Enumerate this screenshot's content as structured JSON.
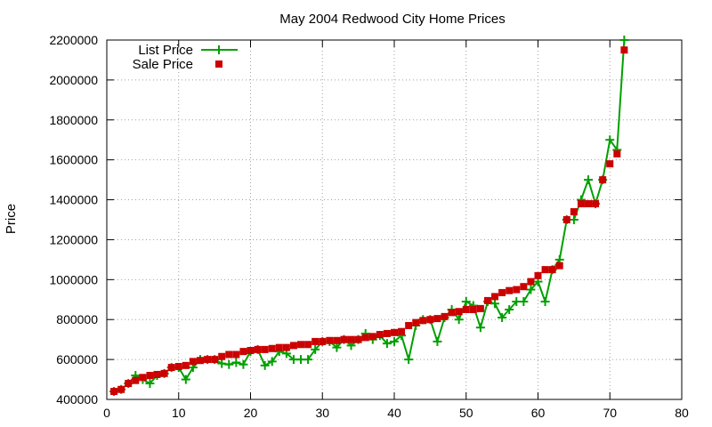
{
  "chart_data": {
    "type": "line",
    "title": "May 2004 Redwood City Home Prices",
    "xlabel": "",
    "ylabel": "Price",
    "xlim": [
      0,
      80
    ],
    "ylim": [
      400000,
      2200000
    ],
    "x_ticks": [
      0,
      10,
      20,
      30,
      40,
      50,
      60,
      70,
      80
    ],
    "y_ticks": [
      400000,
      600000,
      800000,
      1000000,
      1200000,
      1400000,
      1600000,
      1800000,
      2000000,
      2200000
    ],
    "grid": true,
    "legend_position": "top-left",
    "series": [
      {
        "name": "List Price",
        "style": "line-plus",
        "color": "#00a000",
        "points": [
          [
            1,
            440000
          ],
          [
            2,
            450000
          ],
          [
            3,
            480000
          ],
          [
            4,
            520000
          ],
          [
            5,
            500000
          ],
          [
            6,
            480000
          ],
          [
            7,
            520000
          ],
          [
            8,
            530000
          ],
          [
            9,
            560000
          ],
          [
            10,
            560000
          ],
          [
            11,
            500000
          ],
          [
            12,
            560000
          ],
          [
            13,
            600000
          ],
          [
            14,
            600000
          ],
          [
            15,
            600000
          ],
          [
            16,
            580000
          ],
          [
            17,
            575000
          ],
          [
            18,
            585000
          ],
          [
            19,
            575000
          ],
          [
            20,
            640000
          ],
          [
            21,
            650000
          ],
          [
            22,
            570000
          ],
          [
            23,
            590000
          ],
          [
            24,
            640000
          ],
          [
            25,
            630000
          ],
          [
            26,
            600000
          ],
          [
            27,
            600000
          ],
          [
            28,
            600000
          ],
          [
            29,
            650000
          ],
          [
            30,
            690000
          ],
          [
            31,
            690000
          ],
          [
            32,
            660000
          ],
          [
            33,
            700000
          ],
          [
            34,
            670000
          ],
          [
            35,
            700000
          ],
          [
            36,
            730000
          ],
          [
            37,
            700000
          ],
          [
            38,
            720000
          ],
          [
            39,
            680000
          ],
          [
            40,
            690000
          ],
          [
            41,
            720000
          ],
          [
            42,
            600000
          ],
          [
            43,
            770000
          ],
          [
            44,
            800000
          ],
          [
            45,
            800000
          ],
          [
            46,
            690000
          ],
          [
            47,
            810000
          ],
          [
            48,
            850000
          ],
          [
            49,
            800000
          ],
          [
            50,
            890000
          ],
          [
            51,
            870000
          ],
          [
            52,
            760000
          ],
          [
            53,
            890000
          ],
          [
            54,
            880000
          ],
          [
            55,
            810000
          ],
          [
            56,
            850000
          ],
          [
            57,
            890000
          ],
          [
            58,
            890000
          ],
          [
            59,
            950000
          ],
          [
            60,
            990000
          ],
          [
            61,
            890000
          ],
          [
            62,
            1050000
          ],
          [
            63,
            1100000
          ],
          [
            64,
            1300000
          ],
          [
            65,
            1300000
          ],
          [
            66,
            1400000
          ],
          [
            67,
            1500000
          ],
          [
            68,
            1380000
          ],
          [
            69,
            1500000
          ],
          [
            70,
            1700000
          ],
          [
            71,
            1650000
          ],
          [
            72,
            2200000
          ]
        ]
      },
      {
        "name": "Sale Price",
        "style": "square",
        "color": "#cc0000",
        "points": [
          [
            1,
            440000
          ],
          [
            2,
            450000
          ],
          [
            3,
            480000
          ],
          [
            4,
            495000
          ],
          [
            5,
            510000
          ],
          [
            6,
            520000
          ],
          [
            7,
            525000
          ],
          [
            8,
            530000
          ],
          [
            9,
            560000
          ],
          [
            10,
            565000
          ],
          [
            11,
            570000
          ],
          [
            12,
            590000
          ],
          [
            13,
            595000
          ],
          [
            14,
            600000
          ],
          [
            15,
            600000
          ],
          [
            16,
            615000
          ],
          [
            17,
            625000
          ],
          [
            18,
            625000
          ],
          [
            19,
            640000
          ],
          [
            20,
            645000
          ],
          [
            21,
            650000
          ],
          [
            22,
            650000
          ],
          [
            23,
            655000
          ],
          [
            24,
            660000
          ],
          [
            25,
            660000
          ],
          [
            26,
            670000
          ],
          [
            27,
            675000
          ],
          [
            28,
            675000
          ],
          [
            29,
            690000
          ],
          [
            30,
            690000
          ],
          [
            31,
            695000
          ],
          [
            32,
            695000
          ],
          [
            33,
            700000
          ],
          [
            34,
            700000
          ],
          [
            35,
            700000
          ],
          [
            36,
            710000
          ],
          [
            37,
            715000
          ],
          [
            38,
            725000
          ],
          [
            39,
            730000
          ],
          [
            40,
            735000
          ],
          [
            41,
            740000
          ],
          [
            42,
            770000
          ],
          [
            43,
            785000
          ],
          [
            44,
            795000
          ],
          [
            45,
            800000
          ],
          [
            46,
            805000
          ],
          [
            47,
            815000
          ],
          [
            48,
            835000
          ],
          [
            49,
            840000
          ],
          [
            50,
            850000
          ],
          [
            51,
            850000
          ],
          [
            52,
            855000
          ],
          [
            53,
            895000
          ],
          [
            54,
            915000
          ],
          [
            55,
            935000
          ],
          [
            56,
            945000
          ],
          [
            57,
            950000
          ],
          [
            58,
            965000
          ],
          [
            59,
            990000
          ],
          [
            60,
            1020000
          ],
          [
            61,
            1050000
          ],
          [
            62,
            1050000
          ],
          [
            63,
            1070000
          ],
          [
            64,
            1300000
          ],
          [
            65,
            1340000
          ],
          [
            66,
            1380000
          ],
          [
            67,
            1380000
          ],
          [
            68,
            1380000
          ],
          [
            69,
            1500000
          ],
          [
            70,
            1580000
          ],
          [
            71,
            1630000
          ],
          [
            72,
            2150000
          ]
        ]
      }
    ]
  }
}
